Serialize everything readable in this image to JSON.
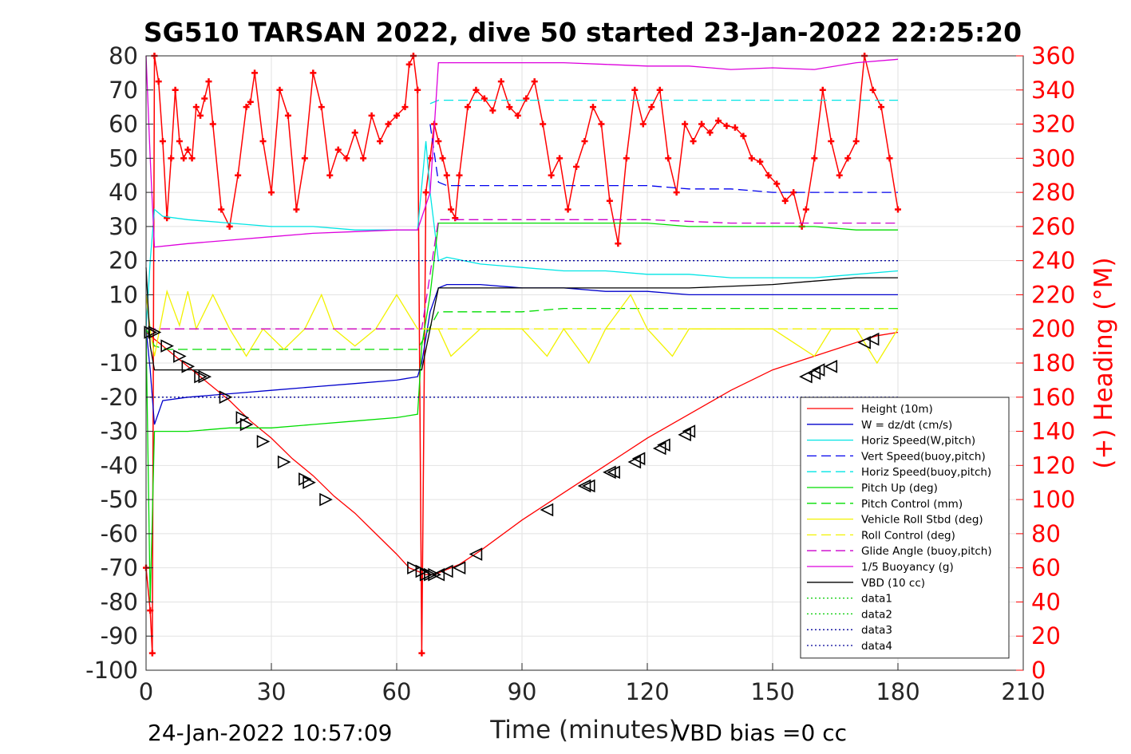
{
  "title": "SG510 TARSAN 2022, dive 50 started 23-Jan-2022 22:25:20",
  "footer": {
    "timestamp": "24-Jan-2022 10:57:09",
    "vbd_bias": "VBD bias =0 cc"
  },
  "colors": {
    "height": "#ff0000",
    "w": "#0000cc",
    "horiz_w": "#00e5e5",
    "vert_buoy": "#0000ee",
    "horiz_buoy": "#00e5e5",
    "pitch_up": "#00dd00",
    "pitch_control": "#00dd00",
    "roll": "#f2f200",
    "roll_control": "#f2f200",
    "glide": "#cc00cc",
    "buoyancy": "#dd00dd",
    "vbd": "#000000",
    "heading": "#ff0000"
  },
  "chart_data": {
    "type": "line",
    "xlabel": "Time (minutes)",
    "ylabel_right": "(+) Heading (°M)",
    "xlim": [
      0,
      210
    ],
    "ylim": [
      -100,
      80
    ],
    "y2lim": [
      0,
      360
    ],
    "xticks": [
      0,
      30,
      60,
      90,
      120,
      150,
      180,
      210
    ],
    "yticks": [
      80,
      70,
      60,
      50,
      40,
      30,
      20,
      10,
      0,
      -10,
      -20,
      -30,
      -40,
      -50,
      -60,
      -70,
      -80,
      -90,
      -100
    ],
    "y2ticks": [
      360,
      340,
      320,
      300,
      280,
      260,
      240,
      220,
      200,
      180,
      160,
      140,
      120,
      100,
      80,
      60,
      40,
      20,
      0
    ],
    "grid": true,
    "legend_position": "lower-right",
    "series": [
      {
        "name": "Height (10m)",
        "x": [
          0,
          2,
          5,
          10,
          15,
          20,
          25,
          30,
          35,
          40,
          45,
          50,
          55,
          60,
          63,
          65,
          67,
          69,
          71,
          75,
          80,
          90,
          100,
          110,
          120,
          130,
          140,
          150,
          160,
          170,
          175,
          180
        ],
        "y": [
          -1,
          -3,
          -6,
          -11,
          -16,
          -21,
          -27,
          -32,
          -38,
          -43,
          -49,
          -54,
          -60,
          -66,
          -70,
          -71,
          -72,
          -72,
          -71,
          -69,
          -65,
          -56,
          -48,
          -40,
          -32,
          -25,
          -18,
          -12,
          -8,
          -4,
          -2,
          -1
        ]
      },
      {
        "name": "W = dz/dt (cm/s)",
        "x": [
          0,
          1,
          2,
          4,
          10,
          20,
          30,
          40,
          50,
          60,
          65,
          66,
          68,
          70,
          72,
          80,
          90,
          100,
          110,
          120,
          130,
          140,
          150,
          160,
          170,
          180
        ],
        "y": [
          0,
          -12,
          -28,
          -21,
          -20,
          -19,
          -18,
          -17,
          -16,
          -15,
          -14,
          -10,
          5,
          12,
          13,
          13,
          12,
          12,
          11,
          11,
          10,
          10,
          10,
          10,
          10,
          10
        ]
      },
      {
        "name": "Horiz Speed(W,pitch)",
        "x": [
          0,
          1,
          2,
          4,
          10,
          20,
          30,
          40,
          50,
          60,
          65,
          67,
          68,
          70,
          72,
          80,
          90,
          100,
          110,
          120,
          130,
          140,
          150,
          160,
          170,
          180
        ],
        "y": [
          0,
          20,
          35,
          33,
          32,
          31,
          30,
          30,
          29,
          29,
          29,
          55,
          40,
          20,
          21,
          19,
          18,
          17,
          17,
          16,
          16,
          15,
          15,
          15,
          16,
          17
        ]
      },
      {
        "name": "Vert Speed(buoy,pitch)",
        "x": [
          68,
          70,
          72,
          80,
          90,
          100,
          110,
          120,
          130,
          140,
          150,
          160,
          170,
          180
        ],
        "y": [
          60,
          43,
          42,
          42,
          42,
          42,
          42,
          42,
          41,
          41,
          40,
          40,
          40,
          40
        ]
      },
      {
        "name": "Horiz Speed(buoy,pitch)",
        "x": [
          68,
          70,
          72,
          80,
          90,
          100,
          110,
          120,
          130,
          140,
          150,
          160,
          170,
          180
        ],
        "y": [
          66,
          67,
          67,
          67,
          67,
          67,
          67,
          67,
          67,
          67,
          67,
          67,
          67,
          67
        ]
      },
      {
        "name": "Pitch Up (deg)",
        "x": [
          0,
          1,
          2,
          3,
          5,
          10,
          20,
          30,
          40,
          50,
          60,
          65,
          66,
          68,
          70,
          72,
          80,
          90,
          100,
          110,
          120,
          130,
          140,
          150,
          160,
          170,
          180
        ],
        "y": [
          0,
          -80,
          -30,
          -30,
          -30,
          -30,
          -29,
          -29,
          -28,
          -27,
          -26,
          -25,
          -5,
          10,
          31,
          31,
          31,
          31,
          31,
          31,
          31,
          30,
          30,
          30,
          30,
          29,
          29
        ]
      },
      {
        "name": "Pitch Control (mm)",
        "x": [
          0,
          2,
          5,
          10,
          20,
          30,
          40,
          50,
          60,
          65,
          70,
          72,
          80,
          90,
          100,
          110,
          120,
          130,
          140,
          150,
          160,
          170,
          180
        ],
        "y": [
          0,
          -5,
          -6,
          -6,
          -6,
          -6,
          -6,
          -6,
          -6,
          -6,
          5,
          5,
          5,
          5,
          6,
          6,
          6,
          6,
          6,
          6,
          6,
          6,
          6
        ]
      },
      {
        "name": "Vehicle Roll Stbd (deg)",
        "x": [
          0,
          1,
          2,
          5,
          8,
          10,
          12,
          16,
          20,
          24,
          28,
          33,
          38,
          42,
          45,
          50,
          55,
          60,
          65,
          68,
          70,
          73,
          80,
          90,
          96,
          100,
          106,
          110,
          116,
          120,
          126,
          130,
          140,
          150,
          160,
          164,
          170,
          175,
          180
        ],
        "y": [
          10,
          0,
          -8,
          11,
          1,
          11,
          0,
          10,
          0,
          -8,
          0,
          -6,
          0,
          10,
          0,
          -5,
          0,
          10,
          0,
          0,
          0,
          -8,
          0,
          0,
          -8,
          0,
          -10,
          0,
          10,
          0,
          -8,
          0,
          0,
          0,
          -8,
          0,
          0,
          -10,
          0
        ]
      },
      {
        "name": "Roll Control (deg)",
        "x": [
          0,
          10,
          30,
          60,
          66,
          70,
          90,
          120,
          150,
          180
        ],
        "y": [
          0,
          0,
          0,
          0,
          0,
          0,
          0,
          0,
          0,
          0
        ]
      },
      {
        "name": "Glide Angle (buoy,pitch)",
        "x": [
          0,
          20,
          40,
          60,
          66,
          70,
          80,
          100,
          120,
          140,
          160,
          180
        ],
        "y": [
          0,
          0,
          0,
          0,
          0,
          32,
          32,
          32,
          32,
          31,
          31,
          31
        ]
      },
      {
        "name": "1/5 Buoyancy (g)",
        "x": [
          0,
          1,
          2,
          10,
          20,
          30,
          40,
          50,
          60,
          65,
          68,
          70,
          72,
          80,
          90,
          100,
          110,
          120,
          130,
          140,
          150,
          160,
          170,
          180
        ],
        "y": [
          80,
          50,
          24,
          25,
          26,
          27,
          28,
          28.5,
          29,
          29,
          40,
          78,
          78,
          78,
          78,
          78,
          77.5,
          77,
          77,
          76,
          76.5,
          76,
          78,
          79
        ]
      },
      {
        "name": "VBD (10 cc)",
        "x": [
          0,
          1,
          2,
          3,
          66,
          70,
          80,
          100,
          120,
          130,
          150,
          160,
          170,
          180
        ],
        "y": [
          18,
          -5,
          -12,
          -12,
          -12,
          12,
          12,
          12,
          12,
          12,
          13,
          14,
          15,
          15
        ]
      },
      {
        "name": "data1",
        "x": [],
        "y": []
      },
      {
        "name": "data2",
        "x": [],
        "y": []
      },
      {
        "name": "data3",
        "x": [
          0,
          180
        ],
        "y": [
          -20,
          -20
        ]
      },
      {
        "name": "data4",
        "x": [
          0,
          180
        ],
        "y": [
          20,
          20
        ]
      }
    ],
    "heading": {
      "name": "Heading",
      "axis": "right",
      "x": [
        0,
        1,
        1.5,
        2,
        3,
        4,
        5,
        6,
        7,
        8,
        9,
        10,
        11,
        12,
        13,
        14,
        15,
        16,
        18,
        20,
        22,
        24,
        25,
        26,
        28,
        30,
        32,
        34,
        36,
        38,
        40,
        42,
        44,
        46,
        48,
        50,
        52,
        54,
        56,
        58,
        60,
        62,
        63,
        64,
        65,
        66,
        67,
        68,
        69,
        70,
        71,
        72,
        73,
        74,
        75,
        77,
        79,
        81,
        83,
        85,
        87,
        89,
        91,
        93,
        95,
        97,
        99,
        101,
        103,
        105,
        107,
        109,
        111,
        113,
        115,
        117,
        119,
        121,
        123,
        125,
        127,
        129,
        131,
        133,
        135,
        137,
        139,
        141,
        143,
        145,
        147,
        149,
        151,
        153,
        155,
        157,
        158,
        160,
        162,
        164,
        166,
        168,
        170,
        172,
        174,
        176,
        178,
        180
      ],
      "y": [
        60,
        35,
        10,
        360,
        345,
        310,
        265,
        300,
        340,
        310,
        300,
        305,
        300,
        330,
        325,
        335,
        345,
        320,
        270,
        260,
        290,
        330,
        333,
        350,
        310,
        280,
        340,
        325,
        270,
        300,
        350,
        330,
        290,
        305,
        300,
        315,
        300,
        325,
        310,
        320,
        325,
        330,
        355,
        360,
        340,
        10,
        280,
        300,
        320,
        310,
        300,
        290,
        270,
        265,
        290,
        330,
        340,
        335,
        328,
        345,
        330,
        325,
        335,
        345,
        320,
        290,
        300,
        270,
        295,
        310,
        330,
        320,
        275,
        250,
        300,
        340,
        320,
        330,
        340,
        300,
        280,
        320,
        310,
        320,
        315,
        322,
        319,
        318,
        313,
        300,
        298,
        290,
        285,
        275,
        280,
        260,
        270,
        300,
        340,
        310,
        290,
        300,
        310,
        360,
        340,
        330,
        300,
        270
      ]
    },
    "markers": {
      "name": "Height markers",
      "x": [
        1,
        2,
        5,
        8,
        10,
        13,
        14,
        19,
        23,
        24,
        28,
        33,
        38,
        39,
        43,
        64,
        66,
        67,
        68,
        69,
        70,
        72,
        75,
        79,
        96,
        105,
        106,
        111,
        112,
        117,
        118,
        123,
        124,
        129,
        130,
        158,
        160,
        161,
        164,
        172,
        174
      ],
      "y": [
        -1,
        -1,
        -5,
        -8,
        -11,
        -14,
        -14,
        -20,
        -26,
        -28,
        -33,
        -39,
        -44,
        -45,
        -50,
        -70,
        -71,
        -72,
        -72,
        -72,
        -72,
        -71,
        -70,
        -66,
        -53,
        -46,
        -46,
        -42,
        -42,
        -39,
        -38,
        -35,
        -34,
        -31,
        -30,
        -14,
        -13,
        -12,
        -11,
        -4,
        -3
      ]
    }
  }
}
